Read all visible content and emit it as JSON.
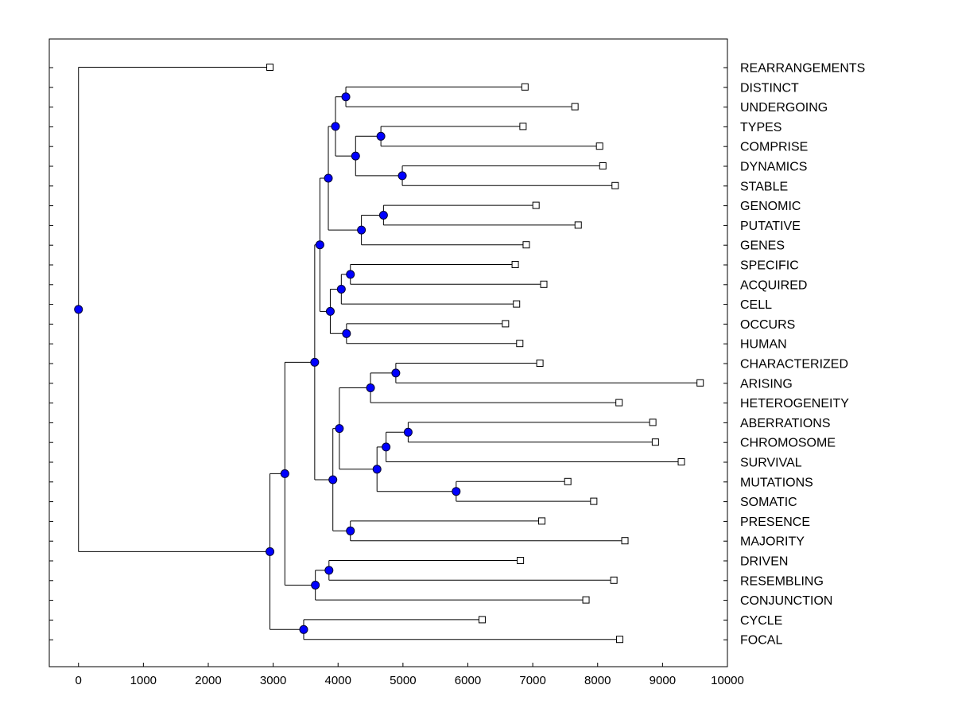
{
  "chart_data": {
    "type": "dendrogram",
    "title": "",
    "xlabel": "",
    "ylabel": "",
    "xlim": [
      -450,
      10000
    ],
    "x_ticks": [
      0,
      1000,
      2000,
      3000,
      4000,
      5000,
      6000,
      7000,
      8000,
      9000,
      10000
    ],
    "node_color": "#0000ff",
    "leaves": [
      {
        "id": "REARRANGEMENTS",
        "label": "REARRANGEMENTS",
        "end": 2950
      },
      {
        "id": "DISTINCT",
        "label": "DISTINCT",
        "end": 6880
      },
      {
        "id": "UNDERGOING",
        "label": "UNDERGOING",
        "end": 7650
      },
      {
        "id": "TYPES",
        "label": "TYPES",
        "end": 6850
      },
      {
        "id": "COMPRISE",
        "label": "COMPRISE",
        "end": 8030
      },
      {
        "id": "DYNAMICS",
        "label": "DYNAMICS",
        "end": 8080
      },
      {
        "id": "STABLE",
        "label": "STABLE",
        "end": 8270
      },
      {
        "id": "GENOMIC",
        "label": "GENOMIC",
        "end": 7050
      },
      {
        "id": "PUTATIVE",
        "label": "PUTATIVE",
        "end": 7700
      },
      {
        "id": "GENES",
        "label": "GENES",
        "end": 6900
      },
      {
        "id": "SPECIFIC",
        "label": "SPECIFIC",
        "end": 6730
      },
      {
        "id": "ACQUIRED",
        "label": "ACQUIRED",
        "end": 7170
      },
      {
        "id": "CELL",
        "label": "CELL",
        "end": 6750
      },
      {
        "id": "OCCURS",
        "label": "OCCURS",
        "end": 6580
      },
      {
        "id": "HUMAN",
        "label": "HUMAN",
        "end": 6800
      },
      {
        "id": "CHARACTERIZED",
        "label": "CHARACTERIZED",
        "end": 7110
      },
      {
        "id": "ARISING",
        "label": "ARISING",
        "end": 9580
      },
      {
        "id": "HETEROGENEITY",
        "label": "HETEROGENEITY",
        "end": 8330
      },
      {
        "id": "ABERRATIONS",
        "label": "ABERRATIONS",
        "end": 8850
      },
      {
        "id": "CHROMOSOME",
        "label": "CHROMOSOME",
        "end": 8890
      },
      {
        "id": "SURVIVAL",
        "label": "SURVIVAL",
        "end": 9290
      },
      {
        "id": "MUTATIONS",
        "label": "MUTATIONS",
        "end": 7540
      },
      {
        "id": "SOMATIC",
        "label": "SOMATIC",
        "end": 7940
      },
      {
        "id": "PRESENCE",
        "label": "PRESENCE",
        "end": 7140
      },
      {
        "id": "MAJORITY",
        "label": "MAJORITY",
        "end": 8420
      },
      {
        "id": "DRIVEN",
        "label": "DRIVEN",
        "end": 6810
      },
      {
        "id": "RESEMBLING",
        "label": "RESEMBLING",
        "end": 8250
      },
      {
        "id": "CONJUNCTION",
        "label": "CONJUNCTION",
        "end": 7820
      },
      {
        "id": "CYCLE",
        "label": "CYCLE",
        "end": 6220
      },
      {
        "id": "FOCAL",
        "label": "FOCAL",
        "end": 8340
      }
    ],
    "merges": [
      {
        "id": "m01",
        "height": 4120,
        "children": [
          "DISTINCT",
          "UNDERGOING"
        ]
      },
      {
        "id": "m02",
        "height": 4660,
        "children": [
          "TYPES",
          "COMPRISE"
        ]
      },
      {
        "id": "m03",
        "height": 4990,
        "children": [
          "DYNAMICS",
          "STABLE"
        ]
      },
      {
        "id": "m04",
        "height": 4270,
        "children": [
          "m02",
          "m03"
        ]
      },
      {
        "id": "m05",
        "height": 3960,
        "children": [
          "m01",
          "m04"
        ]
      },
      {
        "id": "m06",
        "height": 4700,
        "children": [
          "GENOMIC",
          "PUTATIVE"
        ]
      },
      {
        "id": "m07",
        "height": 4360,
        "children": [
          "m06",
          "GENES"
        ]
      },
      {
        "id": "m08",
        "height": 3850,
        "children": [
          "m05",
          "m07"
        ]
      },
      {
        "id": "m09",
        "height": 4190,
        "children": [
          "SPECIFIC",
          "ACQUIRED"
        ]
      },
      {
        "id": "m10",
        "height": 4050,
        "children": [
          "m09",
          "CELL"
        ]
      },
      {
        "id": "m11",
        "height": 4130,
        "children": [
          "OCCURS",
          "HUMAN"
        ]
      },
      {
        "id": "m12",
        "height": 3880,
        "children": [
          "m10",
          "m11"
        ]
      },
      {
        "id": "m13",
        "height": 3720,
        "children": [
          "m08",
          "m12"
        ]
      },
      {
        "id": "m14",
        "height": 4890,
        "children": [
          "CHARACTERIZED",
          "ARISING"
        ]
      },
      {
        "id": "m15",
        "height": 4500,
        "children": [
          "m14",
          "HETEROGENEITY"
        ]
      },
      {
        "id": "m16",
        "height": 5080,
        "children": [
          "ABERRATIONS",
          "CHROMOSOME"
        ]
      },
      {
        "id": "m17",
        "height": 4740,
        "children": [
          "m16",
          "SURVIVAL"
        ]
      },
      {
        "id": "m18",
        "height": 5820,
        "children": [
          "MUTATIONS",
          "SOMATIC"
        ]
      },
      {
        "id": "m19",
        "height": 4600,
        "children": [
          "m17",
          "m18"
        ]
      },
      {
        "id": "m20",
        "height": 4020,
        "children": [
          "m15",
          "m19"
        ]
      },
      {
        "id": "m21",
        "height": 4190,
        "children": [
          "PRESENCE",
          "MAJORITY"
        ]
      },
      {
        "id": "m22",
        "height": 3920,
        "children": [
          "m20",
          "m21"
        ]
      },
      {
        "id": "m23",
        "height": 3640,
        "children": [
          "m13",
          "m22"
        ]
      },
      {
        "id": "m24",
        "height": 3860,
        "children": [
          "DRIVEN",
          "RESEMBLING"
        ]
      },
      {
        "id": "m25",
        "height": 3650,
        "children": [
          "m24",
          "CONJUNCTION"
        ]
      },
      {
        "id": "m26",
        "height": 3180,
        "children": [
          "m23",
          "m25"
        ]
      },
      {
        "id": "m27",
        "height": 3470,
        "children": [
          "CYCLE",
          "FOCAL"
        ]
      },
      {
        "id": "m28",
        "height": 2950,
        "children": [
          "m26",
          "m27"
        ]
      },
      {
        "id": "m29",
        "height": 0,
        "children": [
          "REARRANGEMENTS",
          "m28"
        ]
      }
    ]
  }
}
